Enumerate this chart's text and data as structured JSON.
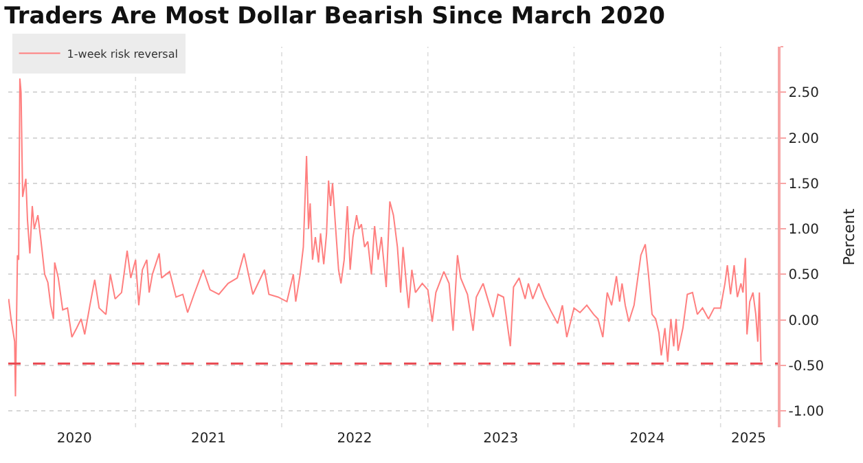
{
  "chart_data": {
    "type": "line",
    "title": "Traders Are Most Dollar Bearish Since March 2020",
    "ylabel": "Percent",
    "x": [
      "2020-02-19",
      "2020-02-25",
      "2020-03-05",
      "2020-03-07",
      "2020-03-12",
      "2020-03-15",
      "2020-03-18",
      "2020-03-21",
      "2020-03-25",
      "2020-04-02",
      "2020-04-06",
      "2020-04-12",
      "2020-04-18",
      "2020-04-23",
      "2020-05-02",
      "2020-05-10",
      "2020-05-19",
      "2020-05-27",
      "2020-06-03",
      "2020-06-10",
      "2020-06-13",
      "2020-06-22",
      "2020-07-03",
      "2020-07-15",
      "2020-07-26",
      "2020-08-07",
      "2020-08-18",
      "2020-08-27",
      "2020-09-09",
      "2020-09-21",
      "2020-10-02",
      "2020-10-19",
      "2020-10-30",
      "2020-11-11",
      "2020-11-27",
      "2020-12-11",
      "2020-12-20",
      "2021-01-01",
      "2021-01-09",
      "2021-01-18",
      "2021-01-29",
      "2021-02-04",
      "2021-02-12",
      "2021-03-01",
      "2021-03-07",
      "2021-03-27",
      "2021-04-12",
      "2021-04-29",
      "2021-05-11",
      "2021-05-27",
      "2021-06-19",
      "2021-07-06",
      "2021-07-28",
      "2021-08-20",
      "2021-09-12",
      "2021-09-29",
      "2021-10-10",
      "2021-10-21",
      "2021-11-19",
      "2021-11-30",
      "2021-12-23",
      "2022-01-14",
      "2022-01-30",
      "2022-02-05",
      "2022-02-16",
      "2022-02-24",
      "2022-03-04",
      "2022-03-09",
      "2022-03-13",
      "2022-03-19",
      "2022-03-26",
      "2022-04-03",
      "2022-04-08",
      "2022-04-16",
      "2022-04-23",
      "2022-04-28",
      "2022-05-03",
      "2022-05-08",
      "2022-05-15",
      "2022-05-23",
      "2022-05-29",
      "2022-06-06",
      "2022-06-14",
      "2022-06-21",
      "2022-06-28",
      "2022-07-07",
      "2022-07-13",
      "2022-07-19",
      "2022-07-27",
      "2022-08-04",
      "2022-08-13",
      "2022-08-21",
      "2022-08-30",
      "2022-09-07",
      "2022-09-19",
      "2022-09-28",
      "2022-10-07",
      "2022-10-17",
      "2022-10-25",
      "2022-10-31",
      "2022-11-09",
      "2022-11-14",
      "2022-11-22",
      "2022-12-01",
      "2022-12-18",
      "2023-01-01",
      "2023-01-12",
      "2023-01-21",
      "2023-02-10",
      "2023-02-23",
      "2023-03-05",
      "2023-03-16",
      "2023-03-24",
      "2023-04-10",
      "2023-04-24",
      "2023-05-02",
      "2023-05-19",
      "2023-06-13",
      "2023-06-25",
      "2023-07-09",
      "2023-07-16",
      "2023-07-26",
      "2023-08-03",
      "2023-08-17",
      "2023-09-01",
      "2023-09-09",
      "2023-09-20",
      "2023-10-05",
      "2023-10-18",
      "2023-11-04",
      "2023-11-21",
      "2023-12-03",
      "2023-12-14",
      "2024-01-01",
      "2024-01-16",
      "2024-02-02",
      "2024-02-19",
      "2024-03-01",
      "2024-03-13",
      "2024-03-24",
      "2024-04-04",
      "2024-04-16",
      "2024-04-24",
      "2024-04-30",
      "2024-05-08",
      "2024-05-17",
      "2024-05-30",
      "2024-06-16",
      "2024-06-27",
      "2024-07-05",
      "2024-07-14",
      "2024-07-23",
      "2024-07-31",
      "2024-08-06",
      "2024-08-15",
      "2024-08-22",
      "2024-08-30",
      "2024-09-06",
      "2024-09-12",
      "2024-09-17",
      "2024-09-29",
      "2024-10-10",
      "2024-10-23",
      "2024-11-04",
      "2024-11-17",
      "2024-12-02",
      "2024-12-16",
      "2025-01-01",
      "2025-01-12",
      "2025-01-18",
      "2025-01-26",
      "2025-02-04",
      "2025-02-12",
      "2025-02-21",
      "2025-02-26",
      "2025-03-04",
      "2025-03-08",
      "2025-03-15",
      "2025-03-23",
      "2025-03-30",
      "2025-04-04",
      "2025-04-08",
      "2025-04-12"
    ],
    "series": [
      {
        "name": "1-week risk reversal",
        "color": "#ff7f7f",
        "values": [
          0.23,
          0.01,
          -0.24,
          -0.84,
          0.71,
          0.66,
          2.65,
          2.5,
          1.35,
          1.55,
          1.1,
          0.73,
          1.25,
          1.0,
          1.15,
          0.86,
          0.5,
          0.41,
          0.16,
          0.01,
          0.63,
          0.46,
          0.11,
          0.13,
          -0.19,
          -0.09,
          0.01,
          -0.16,
          0.16,
          0.44,
          0.13,
          0.06,
          0.5,
          0.23,
          0.3,
          0.76,
          0.46,
          0.66,
          0.16,
          0.55,
          0.66,
          0.3,
          0.5,
          0.73,
          0.46,
          0.53,
          0.25,
          0.28,
          0.08,
          0.28,
          0.55,
          0.33,
          0.28,
          0.4,
          0.46,
          0.73,
          0.5,
          0.28,
          0.55,
          0.28,
          0.25,
          0.2,
          0.5,
          0.2,
          0.5,
          0.8,
          1.8,
          1.0,
          1.28,
          0.66,
          0.91,
          0.63,
          0.95,
          0.61,
          0.95,
          1.53,
          1.25,
          1.5,
          1.05,
          0.55,
          0.4,
          0.66,
          1.25,
          0.55,
          0.91,
          1.15,
          1.0,
          1.05,
          0.8,
          0.86,
          0.5,
          1.03,
          0.66,
          0.91,
          0.36,
          1.3,
          1.15,
          0.8,
          0.3,
          0.8,
          0.36,
          0.13,
          0.55,
          0.3,
          0.4,
          0.33,
          -0.02,
          0.3,
          0.53,
          0.4,
          -0.12,
          0.71,
          0.46,
          0.28,
          -0.12,
          0.25,
          0.4,
          0.03,
          0.28,
          0.25,
          0.03,
          -0.29,
          0.36,
          0.46,
          0.23,
          0.4,
          0.23,
          0.4,
          0.25,
          0.1,
          -0.04,
          0.16,
          -0.19,
          0.13,
          0.08,
          0.16,
          0.06,
          0.01,
          -0.19,
          0.3,
          0.16,
          0.48,
          0.2,
          0.4,
          0.16,
          -0.02,
          0.16,
          0.71,
          0.83,
          0.5,
          0.06,
          0.01,
          -0.14,
          -0.39,
          -0.09,
          -0.46,
          0.01,
          -0.29,
          0.01,
          -0.34,
          -0.09,
          0.28,
          0.3,
          0.06,
          0.13,
          0.01,
          0.13,
          0.13,
          0.4,
          0.6,
          0.28,
          0.6,
          0.25,
          0.4,
          0.3,
          0.68,
          -0.16,
          0.2,
          0.3,
          0.06,
          -0.24,
          0.3,
          -0.46
        ]
      }
    ],
    "xlim": [
      "2020-02-18",
      "2025-05-24"
    ],
    "xticks": [
      {
        "value": "2020-08-01",
        "label": "2020"
      },
      {
        "value": "2021-01-01",
        "label": null
      },
      {
        "value": "2021-07-02",
        "label": "2021"
      },
      {
        "value": "2022-01-01",
        "label": null
      },
      {
        "value": "2022-07-02",
        "label": "2022"
      },
      {
        "value": "2023-01-01",
        "label": null
      },
      {
        "value": "2023-07-02",
        "label": "2023"
      },
      {
        "value": "2024-01-01",
        "label": null
      },
      {
        "value": "2024-07-02",
        "label": "2024"
      },
      {
        "value": "2025-01-01",
        "label": null
      },
      {
        "value": "2025-03-12",
        "label": "2025"
      }
    ],
    "ylim": [
      -1.18,
      3.0
    ],
    "yticks": [
      {
        "value": -1.0,
        "label": "-1.00"
      },
      {
        "value": -0.5,
        "label": "-0.50"
      },
      {
        "value": 0.0,
        "label": "0.00"
      },
      {
        "value": 0.5,
        "label": "0.50"
      },
      {
        "value": 1.0,
        "label": "1.00"
      },
      {
        "value": 1.5,
        "label": "1.50"
      },
      {
        "value": 2.0,
        "label": "2.00"
      },
      {
        "value": 2.5,
        "label": "2.50"
      }
    ],
    "ref_lines": [
      {
        "axis": "y",
        "value": -0.48,
        "color": "#e8474f",
        "line_style": "dashed"
      }
    ],
    "grid": true,
    "legend": "top left",
    "marker": "none",
    "line_style": "solid"
  }
}
